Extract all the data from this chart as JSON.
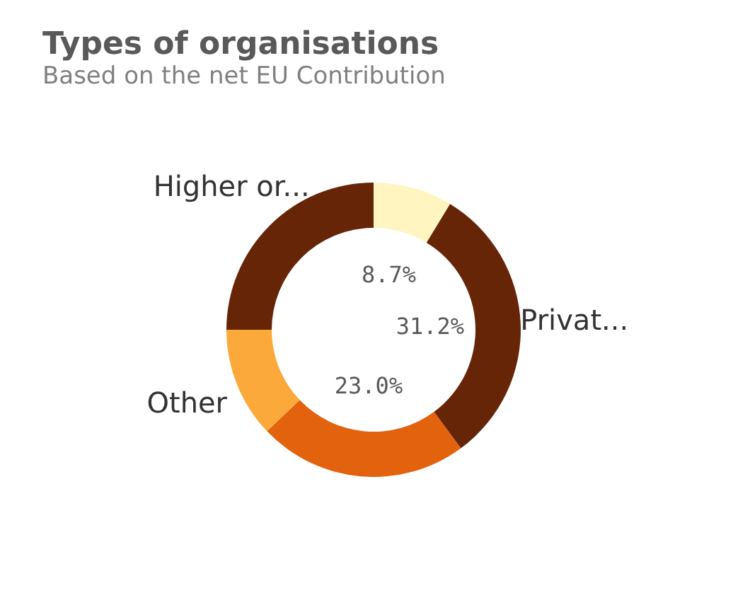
{
  "chart_data": {
    "type": "donut",
    "title": "Types of organisations",
    "subtitle": "Based on the net EU Contribution",
    "categories": [
      null,
      "Privat...",
      null,
      "Other",
      "Higher or..."
    ],
    "values": [
      8.7,
      31.2,
      23.0,
      12.1,
      25.0
    ],
    "colors": [
      "#fff5c0",
      "#662506",
      "#e2620e",
      "#fba93a",
      "#662506"
    ],
    "value_labels": [
      "8.7%",
      "31.2%",
      "23.0%",
      null,
      null
    ],
    "legend": false
  }
}
